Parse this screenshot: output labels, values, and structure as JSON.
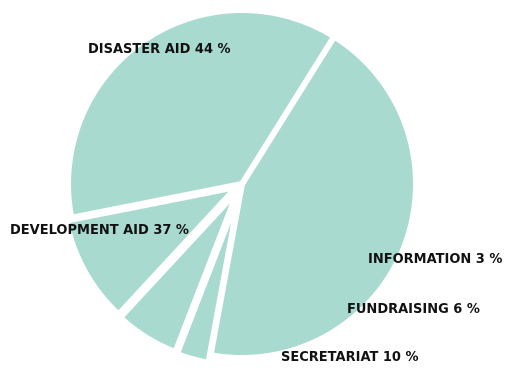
{
  "chart_data": {
    "type": "pie",
    "title": "",
    "color": "#a8dad0",
    "separator_color": "#ffffff",
    "slices": [
      {
        "label": "DISASTER AID 44 %",
        "category": "DISASTER AID",
        "value": 44
      },
      {
        "label": "INFORMATION 3 %",
        "category": "INFORMATION",
        "value": 3
      },
      {
        "label": "FUNDRAISING 6 %",
        "category": "FUNDRAISING",
        "value": 6
      },
      {
        "label": "SECRETARIAT 10 %",
        "category": "SECRETARIAT",
        "value": 10
      },
      {
        "label": "DEVELOPMENT AID 37 %",
        "category": "DEVELOPMENT AID",
        "value": 37
      }
    ]
  }
}
